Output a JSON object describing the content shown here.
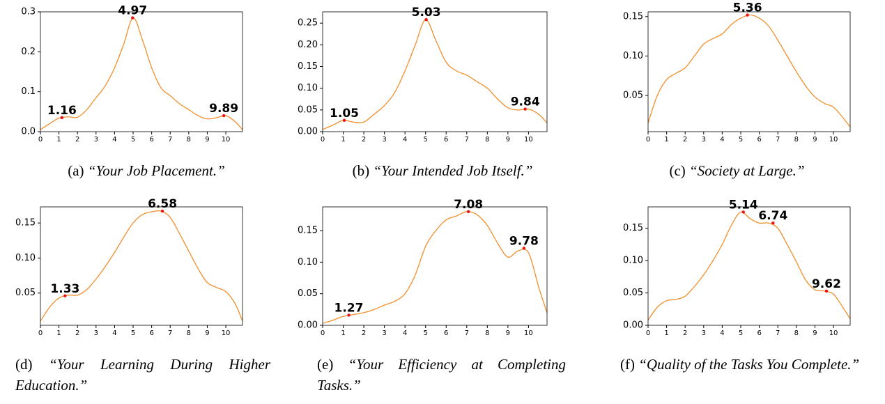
{
  "chart_data": [
    {
      "type": "line",
      "caption": {
        "label": "(a)",
        "text": "“Your Job Placement.”"
      },
      "x": [
        0,
        0.5,
        1,
        1.5,
        2,
        2.5,
        3,
        3.5,
        4,
        4.5,
        5,
        5.5,
        6,
        6.5,
        7,
        7.5,
        8,
        8.5,
        9,
        9.5,
        10,
        10.5,
        10.9
      ],
      "series": [
        {
          "color": "#f28e2b",
          "values": [
            0.005,
            0.02,
            0.034,
            0.037,
            0.036,
            0.055,
            0.085,
            0.115,
            0.16,
            0.22,
            0.285,
            0.23,
            0.16,
            0.11,
            0.09,
            0.07,
            0.055,
            0.04,
            0.032,
            0.035,
            0.04,
            0.025,
            0.005
          ]
        }
      ],
      "annotations": [
        {
          "x": 1.16,
          "y": 0.035
        },
        {
          "x": 4.97,
          "y": 0.285
        },
        {
          "x": 9.89,
          "y": 0.04
        }
      ],
      "annotation_color": "#ee1111",
      "xlim": [
        0,
        10.9
      ],
      "xticks": [
        0,
        1,
        2,
        3,
        4,
        5,
        6,
        7,
        8,
        9,
        10
      ],
      "ylim": [
        0,
        0.3
      ],
      "yticks": [
        {
          "value": 0,
          "label": "0.0"
        },
        0.1,
        0.2,
        0.3
      ]
    },
    {
      "type": "line",
      "caption": {
        "label": "(b)",
        "text": "“Your Intended Job Itself.”"
      },
      "x": [
        0,
        0.5,
        1,
        1.5,
        2,
        2.5,
        3,
        3.5,
        4,
        4.5,
        5,
        5.5,
        6,
        6.5,
        7,
        7.5,
        8,
        8.5,
        9,
        9.5,
        10,
        10.5,
        10.9
      ],
      "series": [
        {
          "color": "#f28e2b",
          "values": [
            0.005,
            0.015,
            0.026,
            0.022,
            0.022,
            0.04,
            0.06,
            0.09,
            0.14,
            0.2,
            0.258,
            0.21,
            0.16,
            0.14,
            0.13,
            0.115,
            0.1,
            0.075,
            0.055,
            0.05,
            0.052,
            0.04,
            0.02
          ]
        }
      ],
      "annotations": [
        {
          "x": 1.05,
          "y": 0.026
        },
        {
          "x": 5.03,
          "y": 0.258
        },
        {
          "x": 9.84,
          "y": 0.052
        }
      ],
      "annotation_color": "#ee1111",
      "xlim": [
        0,
        10.9
      ],
      "xticks": [
        0,
        1,
        2,
        3,
        4,
        5,
        6,
        7,
        8,
        9,
        10
      ],
      "ylim": [
        0,
        0.276
      ],
      "yticks": [
        {
          "value": 0,
          "label": "0.00"
        },
        0.05,
        {
          "value": 0.1,
          "label": "0.10"
        },
        0.15,
        {
          "value": 0.2,
          "label": "0.20"
        },
        0.25
      ]
    },
    {
      "type": "line",
      "caption": {
        "label": "(c)",
        "text": "“Society at Large.”"
      },
      "x": [
        0,
        0.5,
        1,
        1.5,
        2,
        2.5,
        3,
        3.5,
        4,
        4.5,
        5,
        5.5,
        6,
        6.5,
        7,
        7.5,
        8,
        8.5,
        9,
        9.5,
        10,
        10.5,
        10.9
      ],
      "series": [
        {
          "color": "#f28e2b",
          "values": [
            0.015,
            0.05,
            0.07,
            0.078,
            0.085,
            0.1,
            0.115,
            0.122,
            0.128,
            0.14,
            0.148,
            0.152,
            0.148,
            0.138,
            0.12,
            0.1,
            0.08,
            0.062,
            0.048,
            0.04,
            0.035,
            0.022,
            0.01
          ]
        }
      ],
      "annotations": [
        {
          "x": 5.36,
          "y": 0.152
        }
      ],
      "annotation_color": "#ee1111",
      "xlim": [
        0,
        10.9
      ],
      "xticks": [
        0,
        1,
        2,
        3,
        4,
        5,
        6,
        7,
        8,
        9,
        10
      ],
      "ylim": [
        0.004,
        0.156
      ],
      "yticks": [
        0.05,
        {
          "value": 0.1,
          "label": "0.10"
        },
        0.15
      ]
    },
    {
      "type": "line",
      "caption": {
        "label": "(d)",
        "text": "“Your Learning During Higher Education.”"
      },
      "x": [
        0,
        0.5,
        1,
        1.5,
        2,
        2.5,
        3,
        3.5,
        4,
        4.5,
        5,
        5.5,
        6,
        6.5,
        7,
        7.5,
        8,
        8.5,
        9,
        9.5,
        10,
        10.5,
        10.9
      ],
      "series": [
        {
          "color": "#f28e2b",
          "values": [
            0.01,
            0.03,
            0.043,
            0.047,
            0.047,
            0.055,
            0.07,
            0.088,
            0.108,
            0.13,
            0.15,
            0.162,
            0.166,
            0.167,
            0.158,
            0.135,
            0.11,
            0.085,
            0.065,
            0.058,
            0.052,
            0.035,
            0.01
          ]
        }
      ],
      "annotations": [
        {
          "x": 1.33,
          "y": 0.046
        },
        {
          "x": 6.58,
          "y": 0.167
        }
      ],
      "annotation_color": "#ee1111",
      "xlim": [
        0,
        10.9
      ],
      "xticks": [
        0,
        1,
        2,
        3,
        4,
        5,
        6,
        7,
        8,
        9,
        10
      ],
      "ylim": [
        0.004,
        0.173
      ],
      "yticks": [
        0.05,
        {
          "value": 0.1,
          "label": "0.10"
        },
        0.15
      ]
    },
    {
      "type": "line",
      "caption": {
        "label": "(e)",
        "text": "“Your Efficiency at Completing Tasks.”"
      },
      "x": [
        0,
        0.5,
        1,
        1.5,
        2,
        2.5,
        3,
        3.5,
        4,
        4.5,
        5,
        5.5,
        6,
        6.5,
        7,
        7.5,
        8,
        8.5,
        9,
        9.5,
        10,
        10.5,
        10.9
      ],
      "series": [
        {
          "color": "#f28e2b",
          "values": [
            0.003,
            0.008,
            0.014,
            0.017,
            0.02,
            0.025,
            0.032,
            0.038,
            0.05,
            0.08,
            0.125,
            0.15,
            0.167,
            0.173,
            0.18,
            0.175,
            0.158,
            0.13,
            0.108,
            0.118,
            0.115,
            0.06,
            0.02
          ]
        }
      ],
      "annotations": [
        {
          "x": 1.27,
          "y": 0.016
        },
        {
          "x": 7.08,
          "y": 0.18
        },
        {
          "x": 9.78,
          "y": 0.122
        }
      ],
      "annotation_color": "#ee1111",
      "xlim": [
        0,
        10.9
      ],
      "xticks": [
        0,
        1,
        2,
        3,
        4,
        5,
        6,
        7,
        8,
        9,
        10
      ],
      "ylim": [
        0,
        0.1875
      ],
      "yticks": [
        {
          "value": 0,
          "label": "0.00"
        },
        0.05,
        {
          "value": 0.1,
          "label": "0.10"
        },
        0.15
      ]
    },
    {
      "type": "line",
      "caption": {
        "label": "(f)",
        "text": "“Quality of the Tasks You Complete.”"
      },
      "x": [
        0,
        0.5,
        1,
        1.5,
        2,
        2.5,
        3,
        3.5,
        4,
        4.5,
        5,
        5.5,
        6,
        6.5,
        7,
        7.5,
        8,
        8.5,
        9,
        9.5,
        10,
        10.5,
        10.9
      ],
      "series": [
        {
          "color": "#f28e2b",
          "values": [
            0.008,
            0.028,
            0.038,
            0.04,
            0.045,
            0.06,
            0.078,
            0.1,
            0.125,
            0.155,
            0.175,
            0.165,
            0.158,
            0.158,
            0.15,
            0.125,
            0.098,
            0.07,
            0.055,
            0.053,
            0.048,
            0.028,
            0.01
          ]
        }
      ],
      "annotations": [
        {
          "x": 5.14,
          "y": 0.175
        },
        {
          "x": 6.74,
          "y": 0.158
        },
        {
          "x": 9.62,
          "y": 0.053
        }
      ],
      "annotation_color": "#ee1111",
      "xlim": [
        0,
        10.9
      ],
      "xticks": [
        0,
        1,
        2,
        3,
        4,
        5,
        6,
        7,
        8,
        9,
        10
      ],
      "ylim": [
        0,
        0.183
      ],
      "yticks": [
        {
          "value": 0,
          "label": "0.00"
        },
        0.05,
        {
          "value": 0.1,
          "label": "0.10"
        },
        0.15
      ]
    }
  ]
}
